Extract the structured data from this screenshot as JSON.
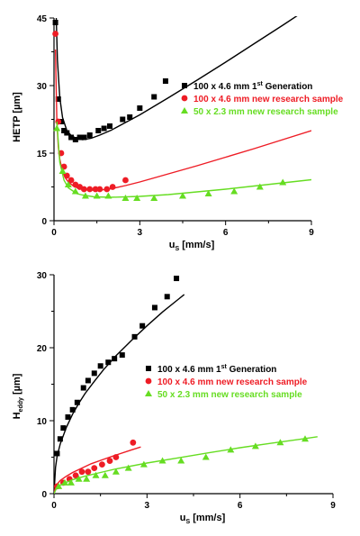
{
  "chart_data": [
    {
      "type": "scatter",
      "title": "",
      "xlabel_main": "u",
      "xlabel_sub": "S",
      "xlabel_unit": "[mm/s]",
      "ylabel_main": "HETP",
      "ylabel_sub": "",
      "ylabel_unit": "[µm]",
      "xlim": [
        0,
        9
      ],
      "ylim": [
        0,
        45
      ],
      "xticks": [
        0,
        3,
        6,
        9
      ],
      "yticks": [
        0,
        15,
        30,
        45
      ],
      "legend_position": "middle-right",
      "series": [
        {
          "name_pre": "100 x 4.6 mm 1",
          "name_sup": "st",
          "name_post": " Generation",
          "color": "#000000",
          "marker": "square",
          "x": [
            0.05,
            0.15,
            0.25,
            0.35,
            0.45,
            0.6,
            0.75,
            0.9,
            1.05,
            1.25,
            1.55,
            1.75,
            1.95,
            2.4,
            2.65,
            3.0,
            3.5,
            3.9
          ],
          "y": [
            44,
            27,
            22,
            20,
            19.5,
            18.5,
            18,
            18.5,
            18.5,
            19,
            20,
            20.5,
            21,
            22.5,
            23,
            25,
            27.5,
            31
          ],
          "fit_x": [
            0.08,
            0.12,
            0.2,
            0.3,
            0.45,
            0.6,
            0.8,
            1.0,
            1.3,
            1.6,
            2.0,
            2.5,
            3.0,
            3.5,
            4.0,
            5.0,
            6.0,
            7.0,
            8.0,
            9.0
          ],
          "fit_y": [
            45,
            35.7,
            27.4,
            22.9,
            20.0,
            18.9,
            18.2,
            18.0,
            18.3,
            19.0,
            20.1,
            21.8,
            23.5,
            25.4,
            27.3,
            31.2,
            35.2,
            39.3,
            43.4,
            47.6
          ]
        },
        {
          "name_pre": "100 x 4.6 mm new research sample",
          "name_sup": "",
          "name_post": "",
          "color": "#ee1c25",
          "marker": "circle",
          "x": [
            0.05,
            0.15,
            0.25,
            0.35,
            0.45,
            0.6,
            0.75,
            0.9,
            1.05,
            1.25,
            1.45,
            1.6,
            1.85,
            2.05,
            2.5
          ],
          "y": [
            41.5,
            22,
            15,
            12,
            10,
            9,
            8,
            7.5,
            7,
            7,
            7,
            7,
            7,
            7.5,
            9
          ],
          "fit_x": [
            0.05,
            0.1,
            0.15,
            0.2,
            0.3,
            0.4,
            0.5,
            0.7,
            0.9,
            1.1,
            1.3,
            1.6,
            2.0,
            2.5,
            3.0,
            4.0,
            5.0,
            6.0,
            7.0,
            8.0,
            9.0
          ],
          "fit_y": [
            38,
            22,
            16.4,
            13.7,
            10.9,
            9.5,
            8.6,
            7.6,
            7.1,
            6.9,
            6.8,
            6.8,
            7.1,
            7.8,
            8.6,
            10.4,
            12.2,
            14.1,
            16.0,
            18.0,
            20.0
          ]
        },
        {
          "name_pre": "50 x 2.3 mm new research sample",
          "name_sup": "",
          "name_post": "",
          "color": "#66dd22",
          "marker": "triangle",
          "x": [
            0.1,
            0.3,
            0.5,
            0.75,
            1.1,
            1.5,
            1.9,
            2.5,
            2.9,
            3.5,
            4.5,
            5.4,
            6.3,
            7.2,
            8.0
          ],
          "y": [
            20.5,
            11,
            8,
            6.5,
            5.5,
            5.5,
            5.5,
            5,
            5,
            5,
            5.5,
            6,
            6.5,
            7.5,
            8.5
          ],
          "fit_x": [
            0.1,
            0.2,
            0.35,
            0.5,
            0.8,
            1.0,
            1.4,
            2.0,
            3.0,
            4.0,
            5.0,
            6.0,
            7.0,
            8.0,
            9.0
          ],
          "fit_y": [
            22,
            13,
            9.0,
            7.3,
            6.0,
            5.7,
            5.3,
            5.2,
            5.4,
            5.8,
            6.4,
            7.0,
            7.7,
            8.4,
            9.1
          ]
        }
      ]
    },
    {
      "type": "scatter",
      "title": "",
      "xlabel_main": "u",
      "xlabel_sub": "S",
      "xlabel_unit": "[mm/s]",
      "ylabel_main": "H",
      "ylabel_sub": "eddy",
      "ylabel_unit": "[µm]",
      "xlim": [
        0,
        9
      ],
      "ylim": [
        0,
        30
      ],
      "xticks": [
        0,
        3,
        6,
        9
      ],
      "yticks": [
        0,
        10,
        20,
        30
      ],
      "legend_position": "middle-right",
      "series": [
        {
          "name_pre": "100 x 4.6 mm 1",
          "name_sup": "st",
          "name_post": " Generation",
          "color": "#000000",
          "marker": "square",
          "x": [
            0.1,
            0.2,
            0.3,
            0.45,
            0.6,
            0.75,
            0.95,
            1.1,
            1.3,
            1.5,
            1.75,
            1.95,
            2.2,
            2.6,
            2.85,
            3.25,
            3.65,
            3.95
          ],
          "y": [
            5.5,
            7.5,
            9,
            10.5,
            11.5,
            12.5,
            14.5,
            15.5,
            16.5,
            17.5,
            18,
            18.5,
            19,
            21.5,
            23,
            25.5,
            27,
            29.5
          ],
          "fit_x": [
            0,
            0.05,
            0.1,
            0.2,
            0.4,
            0.6,
            0.8,
            1.0,
            1.3,
            1.6,
            2.0,
            2.5,
            3.0,
            3.5,
            4.0,
            4.2
          ],
          "fit_y": [
            0,
            3.6,
            5.1,
            6.8,
            9.1,
            10.9,
            12.4,
            13.7,
            15.4,
            17.0,
            18.9,
            21.0,
            23.0,
            24.9,
            26.6,
            27.3
          ]
        },
        {
          "name_pre": "100 x 4.6 mm new research sample",
          "name_sup": "",
          "name_post": "",
          "color": "#ee1c25",
          "marker": "circle",
          "x": [
            0.1,
            0.3,
            0.5,
            0.7,
            0.9,
            1.1,
            1.3,
            1.55,
            1.8,
            2.0,
            2.55
          ],
          "y": [
            1,
            1.5,
            2,
            2.5,
            3,
            3,
            3.5,
            4,
            4.5,
            5,
            7
          ],
          "fit_x": [
            0,
            0.05,
            0.1,
            0.2,
            0.4,
            0.6,
            0.9,
            1.2,
            1.6,
            2.0,
            2.5,
            2.8
          ],
          "fit_y": [
            0,
            1.0,
            1.3,
            1.8,
            2.4,
            2.9,
            3.5,
            4.1,
            4.7,
            5.3,
            6.0,
            6.4
          ]
        },
        {
          "name_pre": "50 x 2.3 mm new research sample",
          "name_sup": "",
          "name_post": "",
          "color": "#66dd22",
          "marker": "triangle",
          "x": [
            0.15,
            0.35,
            0.55,
            0.8,
            1.05,
            1.35,
            1.65,
            2.0,
            2.4,
            2.9,
            3.5,
            4.1,
            4.9,
            5.7,
            6.5,
            7.3,
            8.1
          ],
          "y": [
            1,
            1.5,
            1.5,
            2,
            2,
            2.5,
            2.5,
            3,
            3.5,
            4,
            4.5,
            4.5,
            5,
            6,
            6.5,
            7,
            7.5
          ],
          "fit_x": [
            0,
            0.1,
            0.3,
            0.6,
            1.0,
            1.5,
            2.0,
            3.0,
            4.0,
            5.0,
            6.0,
            7.0,
            8.0,
            8.5
          ],
          "fit_y": [
            0,
            0.9,
            1.4,
            1.9,
            2.4,
            2.9,
            3.4,
            4.2,
            4.9,
            5.6,
            6.3,
            6.9,
            7.5,
            7.8
          ]
        }
      ]
    }
  ]
}
